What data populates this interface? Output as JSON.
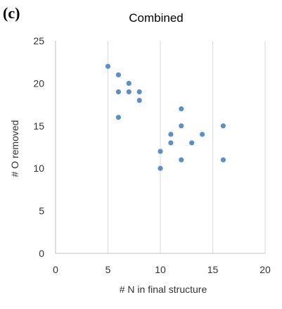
{
  "panel_label": "(c)",
  "colors": {
    "marker": "#5b8fc7",
    "grid": "#d9d9d9",
    "axis": "#bfbfbf"
  },
  "chart_data": {
    "type": "scatter",
    "title": "Combined",
    "xlabel": "# N in final structure",
    "ylabel": "# O removed",
    "xlim": [
      0,
      20
    ],
    "ylim": [
      0,
      25
    ],
    "xticks": [
      "0",
      "5",
      "10",
      "15",
      "20"
    ],
    "yticks": [
      "0",
      "5",
      "10",
      "15",
      "20",
      "25"
    ],
    "grid": "vertical",
    "points": [
      {
        "x": 5,
        "y": 22
      },
      {
        "x": 6,
        "y": 21
      },
      {
        "x": 6,
        "y": 19
      },
      {
        "x": 6,
        "y": 16
      },
      {
        "x": 7,
        "y": 20
      },
      {
        "x": 7,
        "y": 19
      },
      {
        "x": 8,
        "y": 19
      },
      {
        "x": 8,
        "y": 18
      },
      {
        "x": 10,
        "y": 12
      },
      {
        "x": 10,
        "y": 10
      },
      {
        "x": 11,
        "y": 14
      },
      {
        "x": 11,
        "y": 13
      },
      {
        "x": 12,
        "y": 17
      },
      {
        "x": 12,
        "y": 15
      },
      {
        "x": 12,
        "y": 11
      },
      {
        "x": 13,
        "y": 13
      },
      {
        "x": 14,
        "y": 14
      },
      {
        "x": 16,
        "y": 15
      },
      {
        "x": 16,
        "y": 11
      }
    ]
  }
}
